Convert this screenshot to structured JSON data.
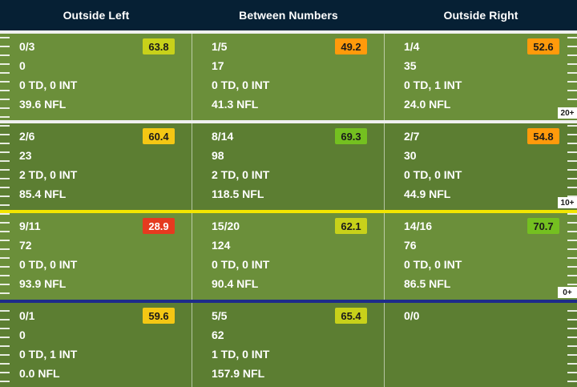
{
  "columns": [
    "Outside Left",
    "Between Numbers",
    "Outside Right"
  ],
  "colors": {
    "header_bg": "#062034",
    "field_light": "#6b8f3a",
    "field_dark": "#5c7e32",
    "grade_red": "#e53a1f",
    "grade_orange": "#ff9a0b",
    "grade_yellow": "#f4c714",
    "grade_lime": "#c8d11a",
    "grade_green": "#74c020",
    "line_yellow": "#f3e600",
    "line_blue": "#1d2b8a",
    "line_white": "#f0f0f0"
  },
  "yard_markers": [
    "20+",
    "10+",
    "0+"
  ],
  "rows": [
    {
      "cells": [
        {
          "completions": "0/3",
          "yards": "0",
          "td_int": "0 TD, 0 INT",
          "rating": "39.6 NFL",
          "grade": "63.8",
          "grade_color": "#c8d11a"
        },
        {
          "completions": "1/5",
          "yards": "17",
          "td_int": "0 TD, 0 INT",
          "rating": "41.3 NFL",
          "grade": "49.2",
          "grade_color": "#ff9a0b"
        },
        {
          "completions": "1/4",
          "yards": "35",
          "td_int": "0 TD, 1 INT",
          "rating": "24.0 NFL",
          "grade": "52.6",
          "grade_color": "#ff9a0b"
        }
      ]
    },
    {
      "cells": [
        {
          "completions": "2/6",
          "yards": "23",
          "td_int": "2 TD, 0 INT",
          "rating": "85.4 NFL",
          "grade": "60.4",
          "grade_color": "#f4c714"
        },
        {
          "completions": "8/14",
          "yards": "98",
          "td_int": "2 TD, 0 INT",
          "rating": "118.5 NFL",
          "grade": "69.3",
          "grade_color": "#74c020"
        },
        {
          "completions": "2/7",
          "yards": "30",
          "td_int": "0 TD, 0 INT",
          "rating": "44.9 NFL",
          "grade": "54.8",
          "grade_color": "#ff9a0b"
        }
      ]
    },
    {
      "cells": [
        {
          "completions": "9/11",
          "yards": "72",
          "td_int": "0 TD, 0 INT",
          "rating": "93.9 NFL",
          "grade": "28.9",
          "grade_color": "#e53a1f"
        },
        {
          "completions": "15/20",
          "yards": "124",
          "td_int": "0 TD, 0 INT",
          "rating": "90.4 NFL",
          "grade": "62.1",
          "grade_color": "#c8d11a"
        },
        {
          "completions": "14/16",
          "yards": "76",
          "td_int": "0 TD, 0 INT",
          "rating": "86.5 NFL",
          "grade": "70.7",
          "grade_color": "#74c020"
        }
      ]
    },
    {
      "cells": [
        {
          "completions": "0/1",
          "yards": "0",
          "td_int": "0 TD, 1 INT",
          "rating": "0.0 NFL",
          "grade": "59.6",
          "grade_color": "#f4c714"
        },
        {
          "completions": "5/5",
          "yards": "62",
          "td_int": "1 TD, 0 INT",
          "rating": "157.9 NFL",
          "grade": "65.4",
          "grade_color": "#c8d11a"
        },
        {
          "completions": "0/0",
          "yards": "",
          "td_int": "",
          "rating": "",
          "grade": "",
          "grade_color": ""
        }
      ]
    }
  ]
}
